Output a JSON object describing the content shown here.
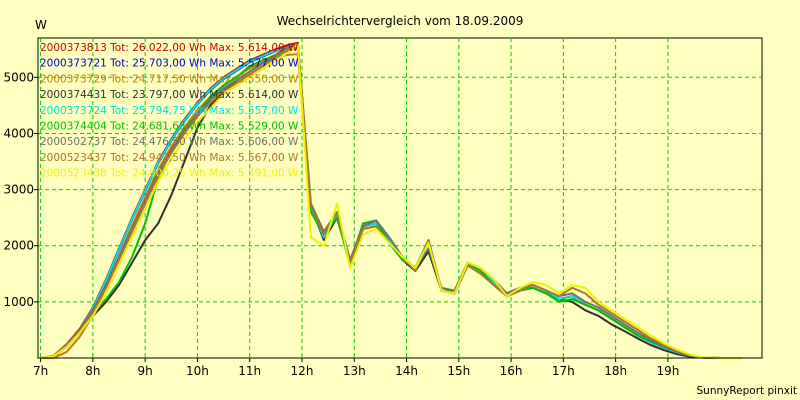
{
  "chart_data": {
    "type": "line",
    "title": "Wechselrichtervergleich vom 18.09.2009",
    "ylabel": "W",
    "xlabel": "",
    "x_ticks": [
      "7h",
      "8h",
      "9h",
      "10h",
      "11h",
      "12h",
      "13h",
      "14h",
      "15h",
      "16h",
      "17h",
      "18h",
      "19h"
    ],
    "y_ticks": [
      "1000",
      "2000",
      "3000",
      "4000",
      "5000"
    ],
    "xlim": [
      6.95,
      20.8
    ],
    "ylim": [
      0,
      5700
    ],
    "grid": true,
    "legend_position": "top-left",
    "credit": "SunnyReport pinxit",
    "x": [
      7.0,
      7.25,
      7.5,
      7.75,
      8.0,
      8.25,
      8.5,
      8.75,
      9.0,
      9.25,
      9.5,
      9.75,
      10.0,
      10.25,
      10.5,
      10.75,
      11.0,
      11.25,
      11.5,
      11.75,
      11.92,
      12.17,
      12.42,
      12.67,
      12.92,
      13.17,
      13.42,
      13.67,
      13.92,
      14.17,
      14.42,
      14.67,
      14.92,
      15.17,
      15.42,
      15.67,
      15.92,
      16.17,
      16.42,
      16.67,
      16.92,
      17.17,
      17.42,
      17.67,
      17.92,
      18.17,
      18.42,
      18.67,
      18.92,
      19.17,
      19.42,
      19.67,
      20.0,
      20.4
    ],
    "series": [
      {
        "name": "2000373813",
        "label": "2000373813 Tot: 26.022,00 Wh Max: 5.614,00 W",
        "color": "#d00000",
        "offset": 0,
        "values": [
          0,
          40,
          250,
          520,
          900,
          1400,
          1950,
          2500,
          3000,
          3500,
          3900,
          4250,
          4550,
          4800,
          5000,
          5150,
          5300,
          5400,
          5500,
          5580,
          5614,
          2650,
          2150,
          2550,
          1650,
          2350,
          2400,
          2100,
          1800,
          1600,
          2100,
          1200,
          1150,
          1700,
          1550,
          1350,
          1150,
          1250,
          1300,
          1200,
          1050,
          1100,
          950,
          850,
          700,
          550,
          400,
          280,
          180,
          100,
          40,
          10,
          0,
          0
        ]
      },
      {
        "name": "2000373721",
        "label": "2000373721 Tot: 25.703,00 Wh Max: 5.577,00 W",
        "color": "#0000d0",
        "offset": -30,
        "values": [
          0,
          40,
          250,
          520,
          900,
          1400,
          1950,
          2500,
          3000,
          3500,
          3900,
          4250,
          4550,
          4800,
          5000,
          5150,
          5300,
          5400,
          5500,
          5560,
          5577,
          2650,
          2150,
          2550,
          1650,
          2350,
          2400,
          2100,
          1800,
          1600,
          2100,
          1200,
          1150,
          1700,
          1550,
          1350,
          1150,
          1250,
          1300,
          1200,
          1050,
          1100,
          950,
          850,
          700,
          550,
          400,
          280,
          180,
          100,
          40,
          10,
          0,
          0
        ]
      },
      {
        "name": "2000373729",
        "label": "2000373729 Tot: 24.717,50 Wh Max: 5.550,00 W",
        "color": "#c08000",
        "offset": -140,
        "values": [
          0,
          40,
          250,
          520,
          900,
          1400,
          1950,
          2500,
          3000,
          3500,
          3900,
          4250,
          4550,
          4800,
          5000,
          5150,
          5300,
          5400,
          5500,
          5540,
          5550,
          2650,
          2150,
          2550,
          1650,
          2350,
          2400,
          2100,
          1800,
          1600,
          2100,
          1200,
          1150,
          1700,
          1550,
          1350,
          1150,
          1250,
          1300,
          1200,
          1050,
          1100,
          950,
          850,
          700,
          550,
          400,
          280,
          180,
          100,
          40,
          10,
          0,
          0
        ]
      },
      {
        "name": "2000374431",
        "label": "2000374431 Tot: 23.797,00 Wh Max: 5.614,00 W",
        "color": "#303030",
        "offset": 0,
        "values": [
          0,
          30,
          200,
          450,
          750,
          1000,
          1300,
          1700,
          2100,
          2400,
          2900,
          3500,
          4100,
          4500,
          4750,
          4950,
          5100,
          5250,
          5400,
          5550,
          5614,
          2700,
          2100,
          2500,
          1700,
          2300,
          2350,
          2050,
          1750,
          1550,
          1900,
          1200,
          1150,
          1650,
          1500,
          1300,
          1100,
          1200,
          1250,
          1150,
          1050,
          1000,
          850,
          750,
          600,
          480,
          350,
          230,
          140,
          70,
          25,
          5,
          0,
          0
        ]
      },
      {
        "name": "2000373724",
        "label": "2000373724 Tot: 25.794,75 Wh Max: 5.557,00 W",
        "color": "#00e0e0",
        "offset": -20,
        "values": [
          0,
          40,
          250,
          520,
          900,
          1400,
          1950,
          2500,
          3000,
          3500,
          3900,
          4250,
          4550,
          4800,
          5000,
          5150,
          5300,
          5400,
          5500,
          5530,
          5557,
          2650,
          2150,
          2550,
          1650,
          2350,
          2400,
          2100,
          1800,
          1600,
          2100,
          1200,
          1150,
          1700,
          1550,
          1350,
          1150,
          1250,
          1300,
          1200,
          1050,
          1100,
          950,
          850,
          700,
          550,
          400,
          280,
          180,
          100,
          40,
          10,
          0,
          0
        ]
      },
      {
        "name": "2000374404",
        "label": "2000374404 Tot: 24.681,63 Wh Max: 5.529,00 W",
        "color": "#00c000",
        "offset": 0,
        "values": [
          0,
          30,
          220,
          480,
          800,
          1050,
          1350,
          1800,
          2400,
          3200,
          3700,
          4050,
          4350,
          4650,
          4850,
          5000,
          5200,
          5300,
          5400,
          5480,
          5529,
          2600,
          2200,
          2500,
          1700,
          2400,
          2450,
          2050,
          1750,
          1600,
          2050,
          1200,
          1200,
          1700,
          1550,
          1300,
          1100,
          1200,
          1250,
          1150,
          1000,
          1050,
          950,
          850,
          700,
          550,
          400,
          300,
          200,
          120,
          50,
          15,
          0,
          0
        ]
      },
      {
        "name": "2000502737",
        "label": "2000502737 Tot: 24.476,50 Wh Max: 5.606,00 W",
        "color": "#707070",
        "offset": 0,
        "values": [
          0,
          40,
          250,
          500,
          850,
          1300,
          1800,
          2300,
          2800,
          3300,
          3700,
          4050,
          4350,
          4600,
          4800,
          4950,
          5100,
          5250,
          5400,
          5550,
          5606,
          2750,
          2250,
          2600,
          1750,
          2350,
          2450,
          2150,
          1800,
          1600,
          1950,
          1250,
          1200,
          1700,
          1600,
          1400,
          1150,
          1250,
          1300,
          1200,
          1100,
          1150,
          1000,
          900,
          750,
          600,
          450,
          320,
          200,
          110,
          45,
          10,
          0,
          0
        ]
      },
      {
        "name": "2000523437",
        "label": "2000523437 Tot: 24.942,50 Wh Max: 5.567,00 W",
        "color": "#a87830",
        "offset": 0,
        "values": [
          0,
          40,
          230,
          480,
          800,
          1250,
          1750,
          2250,
          2750,
          3250,
          3650,
          4000,
          4300,
          4550,
          4750,
          4900,
          5050,
          5200,
          5350,
          5500,
          5567,
          2700,
          2200,
          2600,
          1700,
          2300,
          2350,
          2050,
          1800,
          1550,
          2100,
          1200,
          1150,
          1650,
          1500,
          1300,
          1100,
          1200,
          1300,
          1200,
          1100,
          1250,
          1150,
          950,
          800,
          650,
          500,
          350,
          230,
          130,
          50,
          10,
          0,
          0
        ]
      },
      {
        "name": "2000523438",
        "label": "2000523438 Tot: 24.800,25 Wh Max: 5.591,00 W",
        "color": "#f0f000",
        "offset": 0,
        "values": [
          0,
          30,
          200,
          450,
          750,
          1150,
          1650,
          2150,
          2650,
          3150,
          3550,
          3900,
          4200,
          4450,
          4700,
          4850,
          5000,
          5150,
          5300,
          5450,
          5591,
          2150,
          2000,
          2750,
          1600,
          2200,
          2300,
          2050,
          1800,
          1600,
          2050,
          1200,
          1150,
          1700,
          1600,
          1400,
          1100,
          1250,
          1350,
          1300,
          1150,
          1300,
          1250,
          1000,
          850,
          700,
          550,
          400,
          260,
          150,
          60,
          15,
          0,
          0
        ]
      }
    ]
  }
}
